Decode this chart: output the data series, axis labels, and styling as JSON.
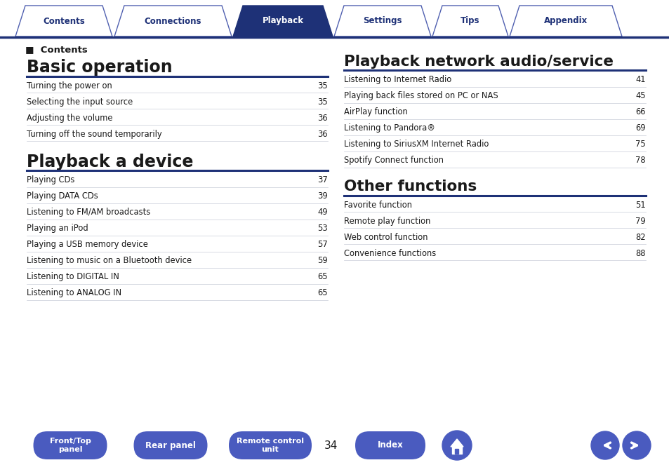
{
  "bg_color": "#ffffff",
  "tab_items": [
    "Contents",
    "Connections",
    "Playback",
    "Settings",
    "Tips",
    "Appendix"
  ],
  "tab_active_index": 2,
  "dark_blue": "#1e3177",
  "medium_blue": "#3a4faa",
  "line_color": "#c8ccd8",
  "section_line_color": "#1e3177",
  "text_color": "#1a1a1a",
  "footer_btn_color": "#4a5bbf",
  "contents_header": "■  Contents",
  "section1_title": "Basic operation",
  "section1_items": [
    [
      "Turning the power on",
      "35"
    ],
    [
      "Selecting the input source",
      "35"
    ],
    [
      "Adjusting the volume",
      "36"
    ],
    [
      "Turning off the sound temporarily",
      "36"
    ]
  ],
  "section2_title": "Playback a device",
  "section2_items": [
    [
      "Playing CDs",
      "37"
    ],
    [
      "Playing DATA CDs",
      "39"
    ],
    [
      "Listening to FM/AM broadcasts",
      "49"
    ],
    [
      "Playing an iPod",
      "53"
    ],
    [
      "Playing a USB memory device",
      "57"
    ],
    [
      "Listening to music on a Bluetooth device",
      "59"
    ],
    [
      "Listening to DIGITAL IN",
      "65"
    ],
    [
      "Listening to ANALOG IN",
      "65"
    ]
  ],
  "section3_title": "Playback network audio/service",
  "section3_items": [
    [
      "Listening to Internet Radio",
      "41"
    ],
    [
      "Playing back files stored on PC or NAS",
      "45"
    ],
    [
      "AirPlay function",
      "66"
    ],
    [
      "Listening to Pandora®",
      "69"
    ],
    [
      "Listening to SiriusXM Internet Radio",
      "75"
    ],
    [
      "Spotify Connect function",
      "78"
    ]
  ],
  "section4_title": "Other functions",
  "section4_items": [
    [
      "Favorite function",
      "51"
    ],
    [
      "Remote play function",
      "79"
    ],
    [
      "Web control function",
      "82"
    ],
    [
      "Convenience functions",
      "88"
    ]
  ],
  "footer_page": "34",
  "footer_btns": [
    "Front/Top\npanel",
    "Rear panel",
    "Remote control\nunit",
    "Index"
  ]
}
